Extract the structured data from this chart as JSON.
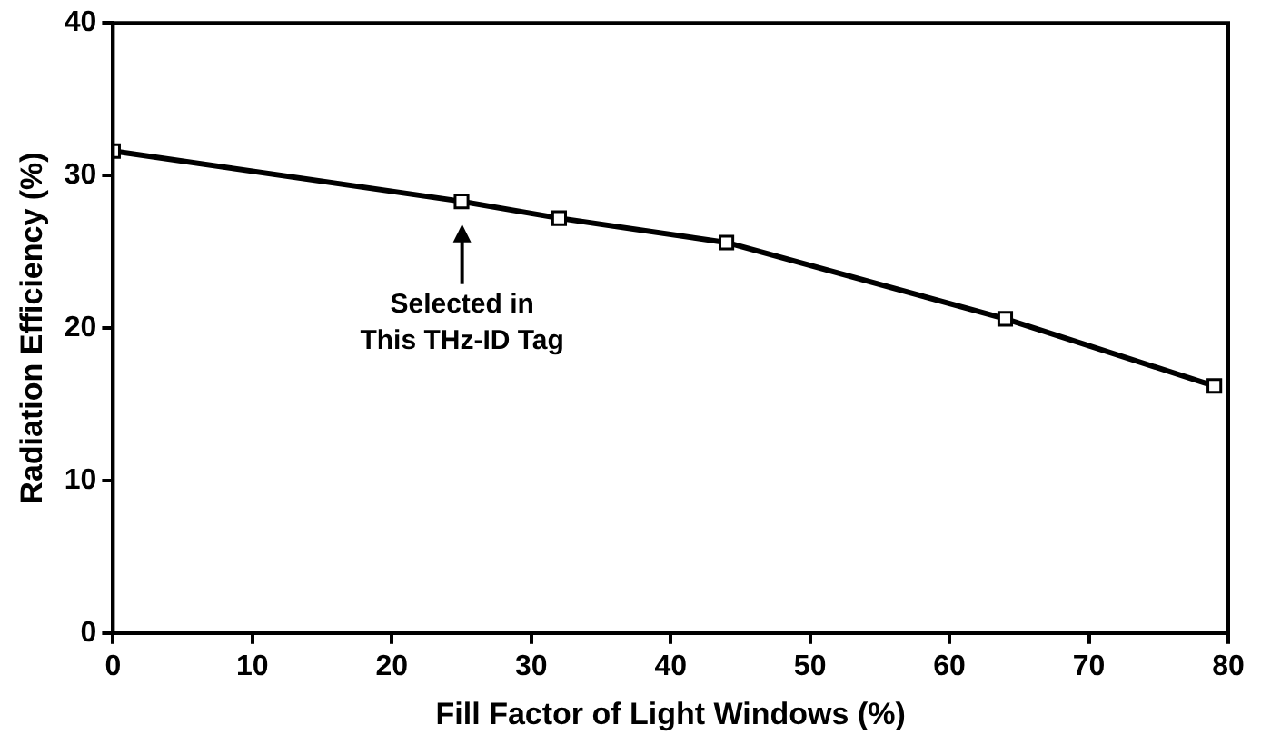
{
  "chart_data": {
    "type": "line",
    "xlabel": "Fill Factor of Light Windows (%)",
    "ylabel": "Radiation Efficiency (%)",
    "x": [
      0,
      25,
      32,
      44,
      64,
      79
    ],
    "series": [
      {
        "color": "#000000",
        "values": [
          31.6,
          28.3,
          27.2,
          25.6,
          20.6,
          16.2
        ]
      }
    ],
    "xlim": [
      0,
      80
    ],
    "xticks": [
      0,
      10,
      20,
      30,
      40,
      50,
      60,
      70,
      80
    ],
    "ylim": [
      0,
      40
    ],
    "yticks": [
      0,
      10,
      20,
      30,
      40
    ],
    "marker": "square",
    "grid": false,
    "legend": false,
    "annotations": [
      "Selected in\nThis THz-ID Tag"
    ]
  }
}
